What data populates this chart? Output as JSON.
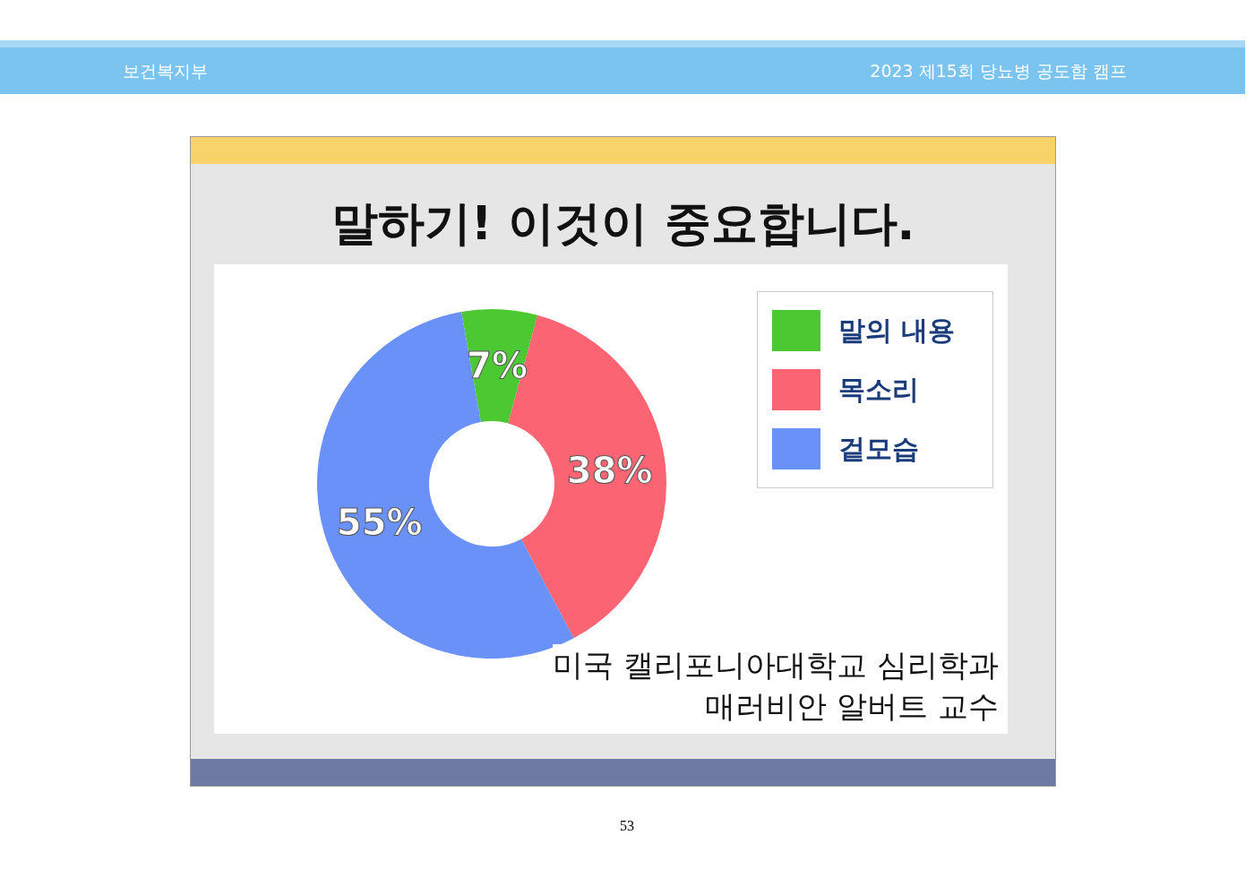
{
  "chart_data": {
    "type": "donut",
    "title": "말하기! 이것이 중요합니다.",
    "categories": [
      "말의 내용",
      "목소리",
      "겉모습"
    ],
    "values": [
      7,
      38,
      55
    ],
    "colors": [
      "#4cc832",
      "#fa6473",
      "#6a91f7"
    ],
    "value_labels": [
      "7%",
      "38%",
      "55%"
    ],
    "legend": "top right",
    "annotations": [
      "보건복지부",
      "2023 제15회 당뇨병 공도함 캠프",
      "미국 캘리포니아대학교 심리학과\n매러비안 알버트 교수",
      "53"
    ]
  }
}
